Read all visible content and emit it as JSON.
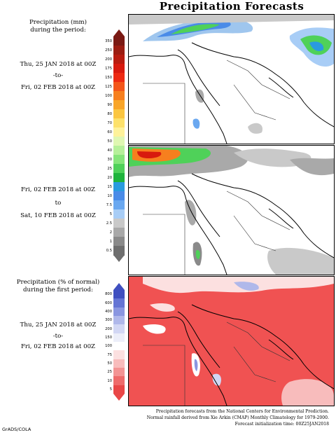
{
  "title": "Precipitation Forecasts",
  "panel1": {
    "heading_line1": "Precipitation (mm)",
    "heading_line2": "during the period:",
    "start": "Thu, 25 JAN 2018 at 00Z",
    "sep": "-to-",
    "end": "Fri, 02 FEB 2018 at 00Z"
  },
  "panel2": {
    "start": "Fri, 02 FEB 2018 at 00Z",
    "sep": "to",
    "end": "Sat, 10 FEB 2018 at 00Z"
  },
  "panel3": {
    "heading_line1": "Precipitation (% of normal)",
    "heading_line2": "during the first period:",
    "start": "Thu, 25 JAN 2018 at 00Z",
    "sep": "-to-",
    "end": "Fri, 02 FEB 2018 at 00Z"
  },
  "scale_mm": {
    "labels": [
      "350",
      "250",
      "200",
      "175",
      "150",
      "125",
      "100",
      "90",
      "80",
      "70",
      "60",
      "50",
      "40",
      "30",
      "25",
      "20",
      "15",
      "10",
      "7.5",
      "5",
      "2.5",
      "2",
      "1",
      "0.5"
    ],
    "colors": [
      "#7a1a14",
      "#9b1d12",
      "#b81c10",
      "#d81a0e",
      "#ee2a12",
      "#f4561a",
      "#f77f1e",
      "#f9a528",
      "#fbc640",
      "#fde16a",
      "#fef29a",
      "#dff7b2",
      "#b6f09a",
      "#86e57a",
      "#4fd159",
      "#1fb43c",
      "#2a9bdf",
      "#4a8be8",
      "#6aa8f0",
      "#a8cdf6",
      "#c9c9c9",
      "#a9a9a9",
      "#8a8a8a",
      "#6e6e6e"
    ]
  },
  "scale_pct": {
    "labels": [
      "800",
      "600",
      "400",
      "300",
      "200",
      "150",
      "100",
      "75",
      "50",
      "25",
      "10",
      "5"
    ],
    "colors": [
      "#3f4fc0",
      "#6474d4",
      "#8a96e0",
      "#b0b8ea",
      "#d2d7f4",
      "#eceef9",
      "#ffffff",
      "#fce0e0",
      "#f8bcbc",
      "#f39494",
      "#ee6b6b",
      "#e94747"
    ]
  },
  "credits": {
    "line1": "Precipitation forecasts from the National Centers for Environmental Prediction.",
    "line2": "Normal rainfall derived from Xie Arkin (CMAP) Monthly Climatology for 1979-2000.",
    "line3": "Forecast initialization time: 00Z25JAN2018"
  },
  "grads": "GrADS/COLA",
  "colors": {
    "pct_background": "#f05252",
    "land_line": "#000000",
    "political_line": "#333333"
  }
}
